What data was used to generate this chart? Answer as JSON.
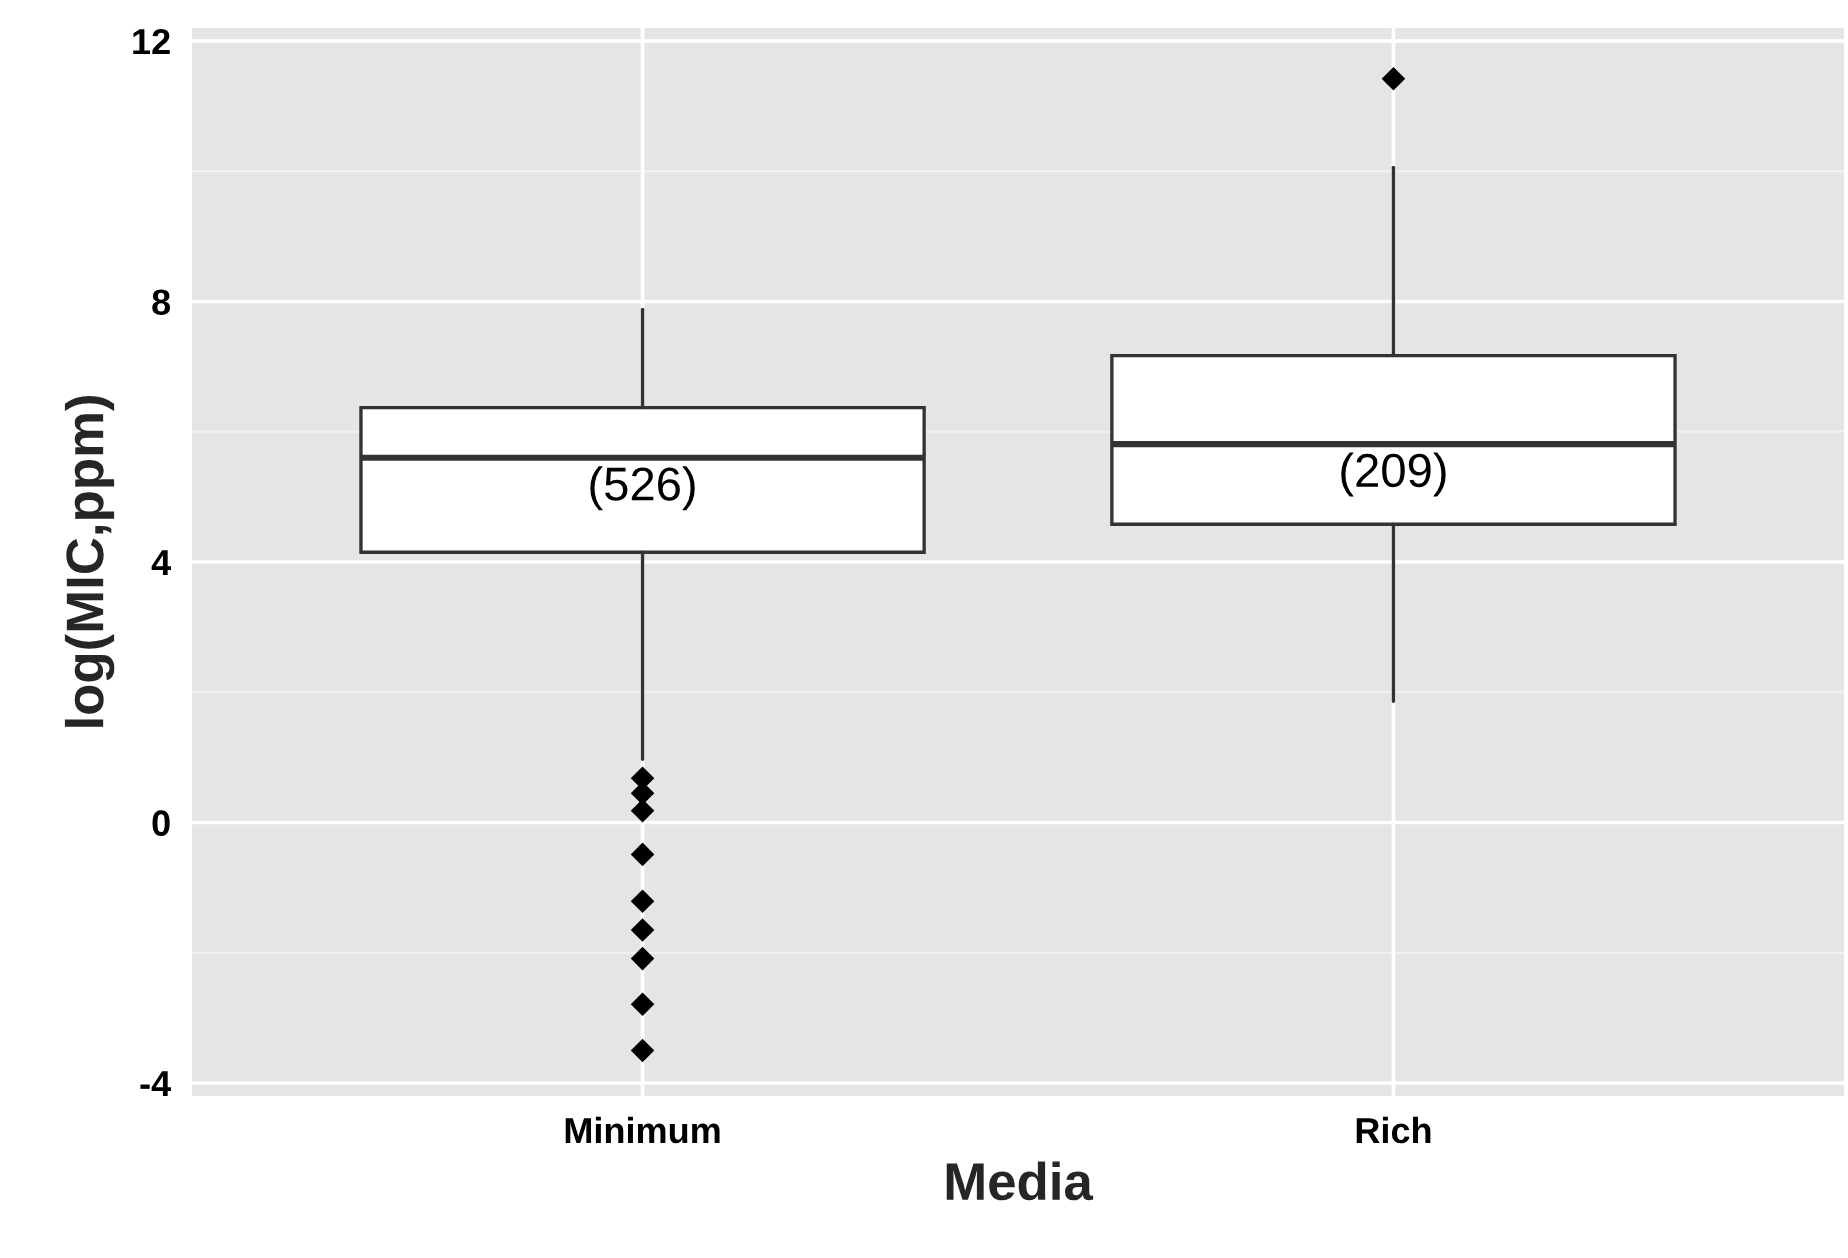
{
  "chart_data": {
    "type": "box",
    "xlabel": "Media",
    "ylabel": "log(MIC,ppm)",
    "categories": [
      "Minimum",
      "Rich"
    ],
    "boxes": [
      {
        "low": 0.97,
        "q1": 4.15,
        "median": 5.6,
        "q3": 6.37,
        "high": 7.88,
        "outliers": [
          0.68,
          0.45,
          0.18,
          -0.49,
          -1.21,
          -1.65,
          -2.09,
          -2.79,
          -3.5
        ]
      },
      {
        "low": 1.86,
        "q1": 4.58,
        "median": 5.81,
        "q3": 7.17,
        "high": 10.06,
        "outliers": [
          11.42
        ]
      }
    ],
    "annotations": [
      "(526)",
      "(209)"
    ],
    "ylim": [
      -4.2,
      12.2
    ],
    "yticks": [
      -4,
      0,
      4,
      8,
      12
    ],
    "grid": true,
    "legend": false
  }
}
